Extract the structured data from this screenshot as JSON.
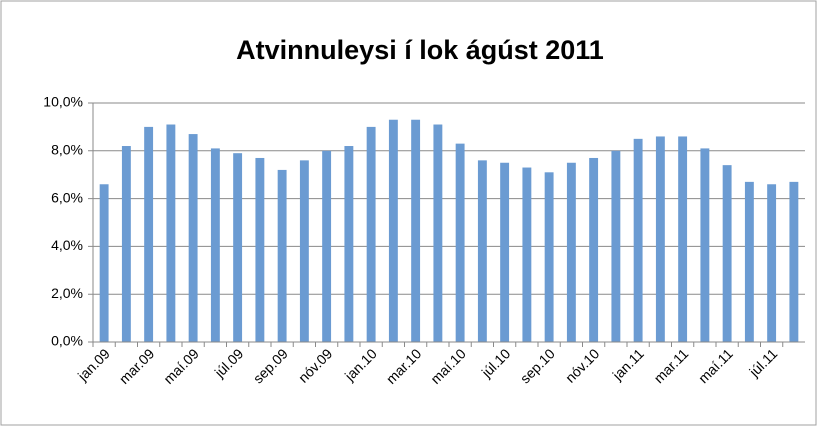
{
  "chart_data": {
    "type": "bar",
    "title": "Atvinnuleysi í lok ágúst 2011",
    "categories": [
      "jan.09",
      null,
      "mar.09",
      null,
      "maí.09",
      null,
      "júl.09",
      null,
      "sep.09",
      null,
      "nóv.09",
      null,
      "jan.10",
      null,
      "mar.10",
      null,
      "maí.10",
      null,
      "júl.10",
      null,
      "sep.10",
      null,
      "nóv.10",
      null,
      "jan.11",
      null,
      "mar.11",
      null,
      "maí.11",
      null,
      "júl.11",
      null
    ],
    "values": [
      6.6,
      8.2,
      9.0,
      9.1,
      8.7,
      8.1,
      7.9,
      7.7,
      7.2,
      7.6,
      8.0,
      8.2,
      9.0,
      9.3,
      9.3,
      9.1,
      8.3,
      7.6,
      7.5,
      7.3,
      7.1,
      7.5,
      7.7,
      8.0,
      8.5,
      8.6,
      8.6,
      8.1,
      7.4,
      6.7,
      6.6,
      6.7
    ],
    "color": "#6b9bd2",
    "ylim": [
      0,
      10
    ],
    "yticks": [
      {
        "value": 0,
        "label": "0,0%"
      },
      {
        "value": 2,
        "label": "2,0%"
      },
      {
        "value": 4,
        "label": "4,0%"
      },
      {
        "value": 6,
        "label": "6,0%"
      },
      {
        "value": 8,
        "label": "8,0%"
      },
      {
        "value": 10,
        "label": "10,0%"
      }
    ],
    "grid": true
  }
}
